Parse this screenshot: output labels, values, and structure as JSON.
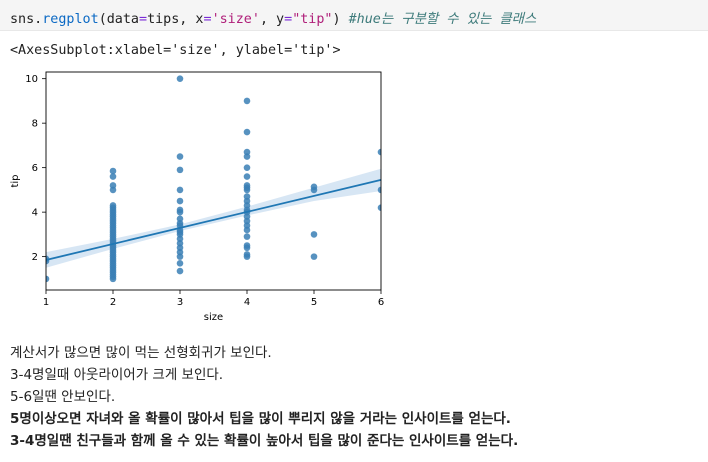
{
  "code_cell": {
    "prefix": "sns.",
    "function": "regplot",
    "arg_data": "(data",
    "equals1": "=",
    "tips_arg": "tips, x",
    "equals2": "=",
    "x_value": "'size'",
    "comma_y": ", y",
    "equals3": "=",
    "y_value": "\"tip\"",
    "close_paren": ") ",
    "comment": "#hue는 구분할 수 있는 클래스"
  },
  "output_repr": "<AxesSubplot:xlabel='size', ylabel='tip'>",
  "chart_data": {
    "type": "scatter",
    "xlabel": "size",
    "ylabel": "tip",
    "xlim": [
      1,
      6
    ],
    "ylim": [
      0.5,
      10.3
    ],
    "xticks": [
      "1",
      "2",
      "3",
      "4",
      "5",
      "6"
    ],
    "yticks": [
      "2",
      "4",
      "6",
      "8",
      "10"
    ],
    "point_color": "#3a7fb5",
    "line_color": "#1f77b4",
    "band_color": "#c6dbef",
    "regression": {
      "x": [
        1,
        6
      ],
      "y": [
        1.85,
        5.45
      ]
    },
    "confidence_band": {
      "x": [
        1,
        2,
        3,
        4,
        5,
        6
      ],
      "upper": [
        2.2,
        2.8,
        3.45,
        4.25,
        5.1,
        5.95
      ],
      "lower": [
        1.5,
        2.35,
        3.15,
        3.85,
        4.5,
        4.95
      ]
    },
    "points": [
      [
        1,
        1.0
      ],
      [
        1,
        1.8
      ],
      [
        1,
        1.9
      ],
      [
        2,
        1.0
      ],
      [
        2,
        1.1
      ],
      [
        2,
        1.2
      ],
      [
        2,
        1.3
      ],
      [
        2,
        1.4
      ],
      [
        2,
        1.5
      ],
      [
        2,
        1.6
      ],
      [
        2,
        1.7
      ],
      [
        2,
        1.8
      ],
      [
        2,
        1.9
      ],
      [
        2,
        2.0
      ],
      [
        2,
        2.1
      ],
      [
        2,
        2.2
      ],
      [
        2,
        2.3
      ],
      [
        2,
        2.4
      ],
      [
        2,
        2.5
      ],
      [
        2,
        2.6
      ],
      [
        2,
        2.7
      ],
      [
        2,
        2.8
      ],
      [
        2,
        2.9
      ],
      [
        2,
        3.0
      ],
      [
        2,
        3.1
      ],
      [
        2,
        3.2
      ],
      [
        2,
        3.3
      ],
      [
        2,
        3.4
      ],
      [
        2,
        3.5
      ],
      [
        2,
        3.6
      ],
      [
        2,
        3.7
      ],
      [
        2,
        3.8
      ],
      [
        2,
        3.9
      ],
      [
        2,
        4.0
      ],
      [
        2,
        4.1
      ],
      [
        2,
        4.2
      ],
      [
        2,
        4.3
      ],
      [
        2,
        5.0
      ],
      [
        2,
        5.2
      ],
      [
        2,
        5.6
      ],
      [
        2,
        5.85
      ],
      [
        3,
        1.35
      ],
      [
        3,
        1.7
      ],
      [
        3,
        2.0
      ],
      [
        3,
        2.2
      ],
      [
        3,
        2.4
      ],
      [
        3,
        2.6
      ],
      [
        3,
        2.8
      ],
      [
        3,
        3.0
      ],
      [
        3,
        3.1
      ],
      [
        3,
        3.2
      ],
      [
        3,
        3.4
      ],
      [
        3,
        3.5
      ],
      [
        3,
        3.7
      ],
      [
        3,
        4.0
      ],
      [
        3,
        4.1
      ],
      [
        3,
        4.5
      ],
      [
        3,
        5.0
      ],
      [
        3,
        5.9
      ],
      [
        3,
        6.5
      ],
      [
        3,
        10.0
      ],
      [
        4,
        2.0
      ],
      [
        4,
        2.1
      ],
      [
        4,
        2.4
      ],
      [
        4,
        2.5
      ],
      [
        4,
        2.9
      ],
      [
        4,
        3.2
      ],
      [
        4,
        3.4
      ],
      [
        4,
        3.6
      ],
      [
        4,
        3.8
      ],
      [
        4,
        4.0
      ],
      [
        4,
        4.1
      ],
      [
        4,
        4.3
      ],
      [
        4,
        4.5
      ],
      [
        4,
        4.7
      ],
      [
        4,
        5.0
      ],
      [
        4,
        5.1
      ],
      [
        4,
        5.2
      ],
      [
        4,
        5.6
      ],
      [
        4,
        6.0
      ],
      [
        4,
        6.5
      ],
      [
        4,
        6.7
      ],
      [
        4,
        7.6
      ],
      [
        4,
        9.0
      ],
      [
        5,
        2.0
      ],
      [
        5,
        3.0
      ],
      [
        5,
        5.0
      ],
      [
        5,
        5.14
      ],
      [
        6,
        4.2
      ],
      [
        6,
        5.0
      ],
      [
        6,
        6.7
      ]
    ]
  },
  "notes": [
    {
      "text": "계산서가 많으면 많이 먹는 선형회귀가 보인다.",
      "bold": false
    },
    {
      "text": "3-4명일때 아웃라이어가 크게 보인다.",
      "bold": false
    },
    {
      "text": "5-6일땐 안보인다.",
      "bold": false
    },
    {
      "text": "5명이상오면 자녀와 올 확률이 많아서 팁을 많이 뿌리지 않을 거라는 인사이트를 얻는다.",
      "bold": true
    },
    {
      "text": "3-4명일땐 친구들과 함께 올 수 있는 확률이 높아서 팁을 많이 준다는 인사이트를 얻는다.",
      "bold": true
    }
  ]
}
